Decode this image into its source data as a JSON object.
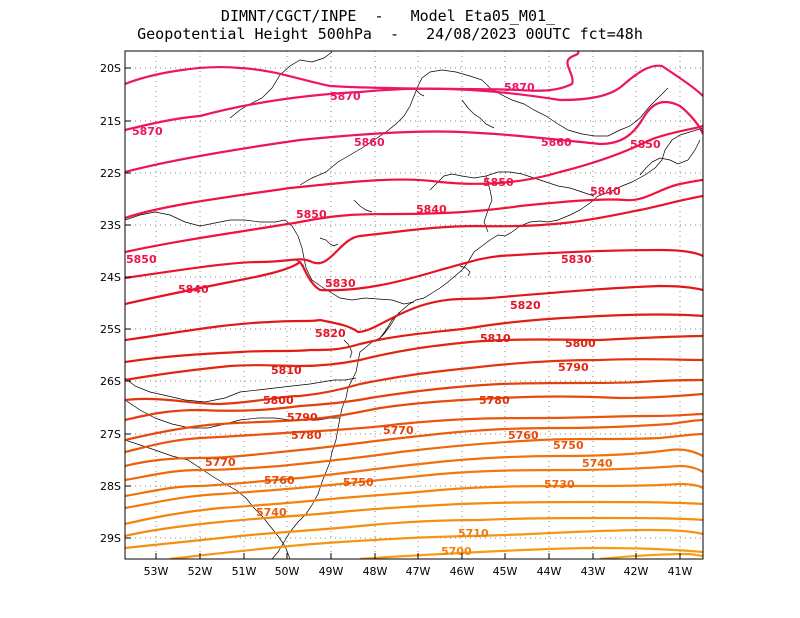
{
  "header": {
    "line1": "DIMNT/CGCT/INPE  -   Model Eta05_M01_",
    "line2": "Geopotential Height 500hPa  -   24/08/2023 00UTC fct=48h"
  },
  "axes": {
    "lat_labels": [
      "20S",
      "21S",
      "22S",
      "23S",
      "24S",
      "25S",
      "26S",
      "27S",
      "28S",
      "29S"
    ],
    "lon_labels": [
      "53W",
      "52W",
      "51W",
      "50W",
      "49W",
      "48W",
      "47W",
      "46W",
      "45W",
      "44W",
      "43W",
      "42W",
      "41W"
    ]
  },
  "colors": {
    "c5870": "#ee1466",
    "c5860": "#ee1458",
    "c5850": "#ee144a",
    "c5840": "#ee143c",
    "c5830": "#e8142e",
    "c5820": "#e41422",
    "c5810": "#e01818",
    "c5800": "#e01e12",
    "c5790": "#e02810",
    "c5780": "#e2340e",
    "c5770": "#e4400c",
    "c5760": "#e64a0c",
    "c5750": "#ea540c",
    "c5740": "#ec5e0c",
    "c5730": "#ee680c",
    "c5720": "#f0720c",
    "c5710": "#f27a0c",
    "c5700": "#f4820c",
    "coast": "#000000",
    "grid": "#888888"
  },
  "contour_labels": [
    {
      "text": "5870"
    },
    {
      "text": "5870"
    },
    {
      "text": "5870"
    },
    {
      "text": "5860"
    },
    {
      "text": "5860"
    },
    {
      "text": "5850"
    },
    {
      "text": "5850"
    },
    {
      "text": "5850"
    },
    {
      "text": "5850"
    },
    {
      "text": "5840"
    },
    {
      "text": "5840"
    },
    {
      "text": "5840"
    },
    {
      "text": "5830"
    },
    {
      "text": "5830"
    },
    {
      "text": "5820"
    },
    {
      "text": "5820"
    },
    {
      "text": "5810"
    },
    {
      "text": "5810"
    },
    {
      "text": "5800"
    },
    {
      "text": "5800"
    },
    {
      "text": "5790"
    },
    {
      "text": "5790"
    },
    {
      "text": "5780"
    },
    {
      "text": "5780"
    },
    {
      "text": "5770"
    },
    {
      "text": "5770"
    },
    {
      "text": "5760"
    },
    {
      "text": "5760"
    },
    {
      "text": "5750"
    },
    {
      "text": "5750"
    },
    {
      "text": "5740"
    },
    {
      "text": "5740"
    },
    {
      "text": "5730"
    },
    {
      "text": "5710"
    },
    {
      "text": "5700"
    }
  ]
}
